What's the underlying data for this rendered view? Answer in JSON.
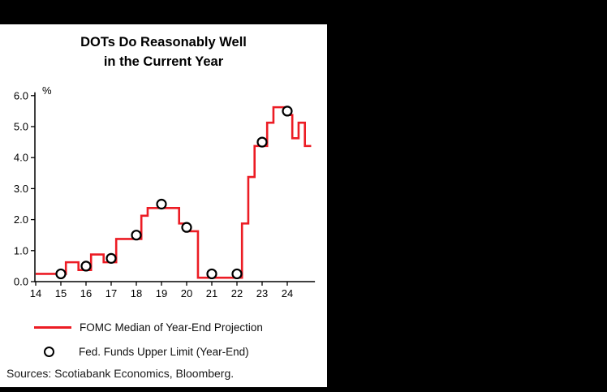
{
  "page": {
    "background": "#000000",
    "panel_background": "#ffffff"
  },
  "chart_data": {
    "type": "line",
    "title": [
      "DOTs Do Reasonably Well",
      "in the Current Year"
    ],
    "y_axis": {
      "unit_label": "%",
      "min": 0.0,
      "max": 6.0,
      "tick_labels": [
        "0.0",
        "1.0",
        "2.0",
        "3.0",
        "4.0",
        "5.0",
        "6.0"
      ],
      "tick_values": [
        0,
        1,
        2,
        3,
        4,
        5,
        6
      ]
    },
    "x_axis": {
      "tick_labels": [
        "14",
        "15",
        "16",
        "17",
        "18",
        "19",
        "20",
        "21",
        "22",
        "23",
        "24"
      ],
      "tick_values": [
        14,
        15,
        16,
        17,
        18,
        19,
        20,
        21,
        22,
        23,
        24
      ],
      "min": 14,
      "max": 25.1
    },
    "grid": false,
    "legend_position": "bottom",
    "series": [
      {
        "name": "FOMC Median of Year-End Projection",
        "type": "step-line",
        "color": "#ec1c24",
        "points": [
          [
            14.0,
            0.25
          ],
          [
            15.2,
            0.625
          ],
          [
            15.7,
            0.375
          ],
          [
            16.2,
            0.875
          ],
          [
            16.7,
            0.625
          ],
          [
            17.2,
            1.375
          ],
          [
            18.2,
            2.125
          ],
          [
            18.45,
            2.375
          ],
          [
            19.7,
            1.875
          ],
          [
            19.95,
            1.625
          ],
          [
            20.45,
            0.125
          ],
          [
            22.2,
            1.875
          ],
          [
            22.45,
            3.375
          ],
          [
            22.7,
            4.375
          ],
          [
            23.2,
            5.125
          ],
          [
            23.45,
            5.625
          ],
          [
            23.95,
            5.375
          ],
          [
            24.2,
            4.625
          ],
          [
            24.45,
            5.125
          ],
          [
            24.7,
            4.375
          ]
        ],
        "end_x": 24.95
      },
      {
        "name": "Fed. Funds Upper Limit (Year-End)",
        "type": "scatter",
        "marker": "open-circle",
        "color": "#000000",
        "points": [
          [
            15,
            0.25
          ],
          [
            16,
            0.5
          ],
          [
            17,
            0.75
          ],
          [
            18,
            1.5
          ],
          [
            19,
            2.5
          ],
          [
            20,
            1.75
          ],
          [
            21,
            0.25
          ],
          [
            22,
            0.25
          ],
          [
            23,
            4.5
          ],
          [
            24,
            5.5
          ]
        ]
      }
    ],
    "source_note": "Sources: Scotiabank Economics, Bloomberg."
  }
}
